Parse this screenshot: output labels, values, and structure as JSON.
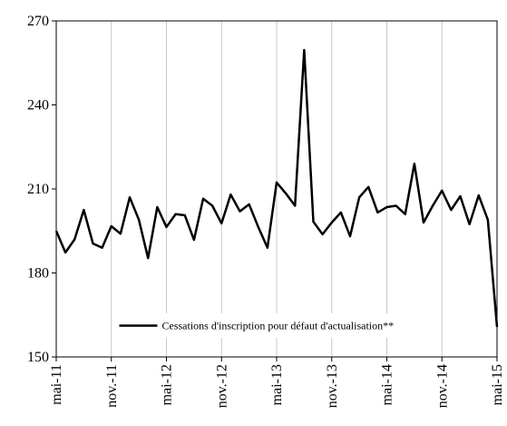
{
  "chart_data": {
    "type": "line",
    "categories": [
      "mai-11",
      null,
      null,
      null,
      null,
      null,
      "nov.-11",
      null,
      null,
      null,
      null,
      null,
      "mai-12",
      null,
      null,
      null,
      null,
      null,
      "nov.-12",
      null,
      null,
      null,
      null,
      null,
      "mai-13",
      null,
      null,
      null,
      null,
      null,
      "nov.-13",
      null,
      null,
      null,
      null,
      null,
      "mai-14",
      null,
      null,
      null,
      null,
      null,
      "nov.-14",
      null,
      null,
      null,
      null,
      null,
      "mai-15"
    ],
    "series": [
      {
        "name": "Cessations d'inscription pour défaut d'actualisation**",
        "color": "#000000",
        "values": [
          195,
          187.3,
          192,
          202.5,
          190.5,
          189,
          196.7,
          194,
          207,
          199,
          185.3,
          203.5,
          196.4,
          201,
          200.6,
          191.8,
          206.5,
          204,
          197.7,
          208,
          202,
          204.5,
          196.4,
          189,
          212.3,
          208.4,
          204,
          259.6,
          198.3,
          193.8,
          198,
          201.6,
          193.1,
          207,
          210.7,
          201.6,
          203.5,
          204,
          201,
          219,
          198,
          204,
          209.4,
          202.5,
          207.4,
          197.4,
          207.7,
          199,
          160.7
        ]
      }
    ],
    "ylim": [
      150,
      270
    ],
    "yticks": [
      150,
      180,
      210,
      240,
      270
    ],
    "grid": "x",
    "legend": "lower center"
  }
}
